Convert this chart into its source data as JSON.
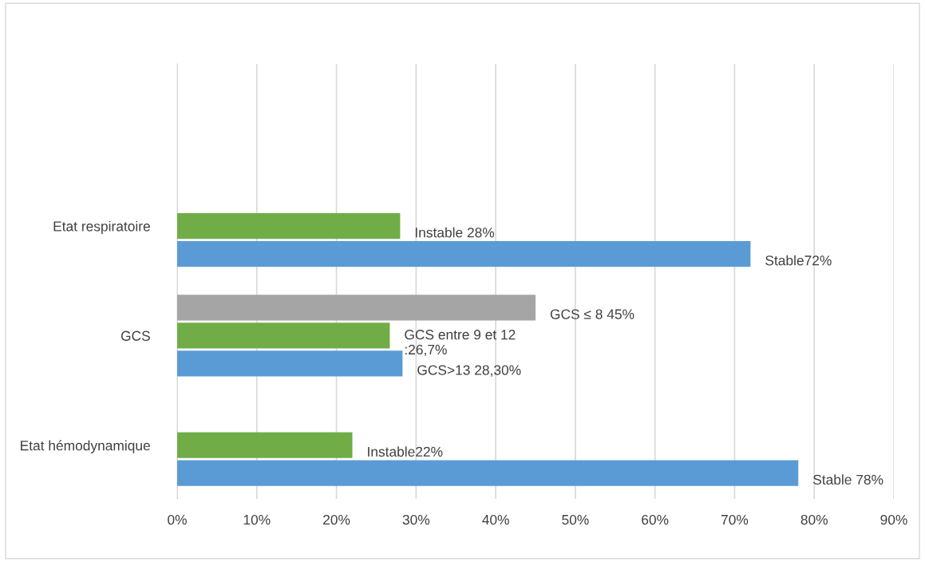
{
  "chart_data": {
    "type": "bar",
    "orientation": "horizontal",
    "categories": [
      "Etat respiratoire",
      "GCS",
      "Etat hémodynamique"
    ],
    "series": [
      {
        "color": "#a5a5a5",
        "values": [
          null,
          45,
          null
        ],
        "value_labels": [
          null,
          "GCS ≤ 8 45%",
          null
        ]
      },
      {
        "color": "#70ad47",
        "values": [
          28,
          26.7,
          22
        ],
        "value_labels": [
          "Instable 28%",
          "GCS entre 9 et 12\n:26,7%",
          "Instable22%"
        ]
      },
      {
        "color": "#5b9bd5",
        "values": [
          72,
          28.3,
          78
        ],
        "value_labels": [
          "Stable72%",
          "GCS>13 28,30%",
          "Stable 78%"
        ]
      }
    ],
    "xlim": [
      0,
      90
    ],
    "xticks": [
      {
        "value": 0,
        "label": "0%"
      },
      {
        "value": 10,
        "label": "10%"
      },
      {
        "value": 20,
        "label": "20%"
      },
      {
        "value": 30,
        "label": "30%"
      },
      {
        "value": 40,
        "label": "40%"
      },
      {
        "value": 50,
        "label": "50%"
      },
      {
        "value": 60,
        "label": "60%"
      },
      {
        "value": 70,
        "label": "70%"
      },
      {
        "value": 80,
        "label": "80%"
      },
      {
        "value": 90,
        "label": "90%"
      }
    ],
    "grid": "x",
    "legend": false
  }
}
